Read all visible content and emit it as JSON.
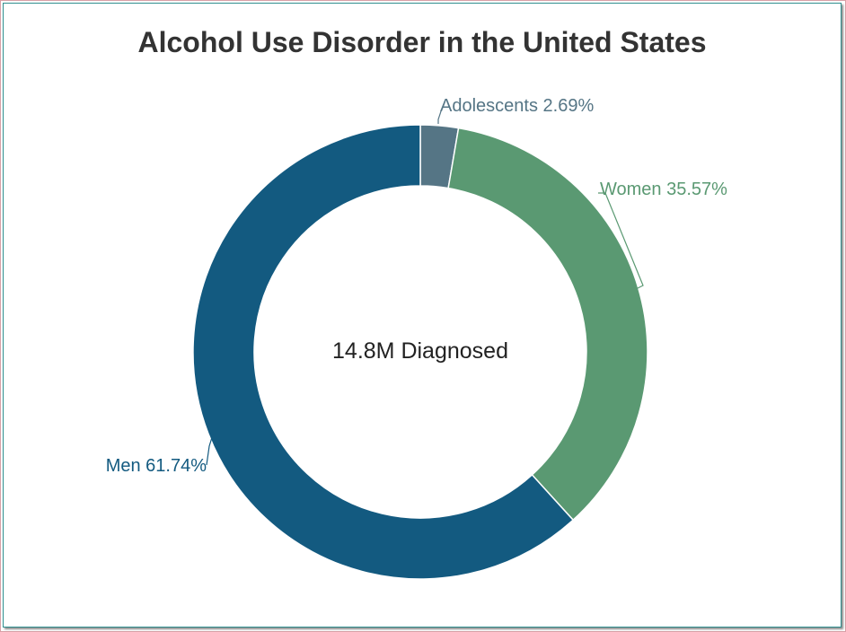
{
  "chart_data": {
    "type": "pie",
    "title": "Alcohol Use Disorder in the United States",
    "center_label": "14.8M Diagnosed",
    "slices": [
      {
        "name": "Adolescents",
        "value": 2.69,
        "label": "Adolescents 2.69%",
        "color": "#557585"
      },
      {
        "name": "Women",
        "value": 35.57,
        "label": "Women 35.57%",
        "color": "#5a9972"
      },
      {
        "name": "Men",
        "value": 61.74,
        "label": "Men 61.74%",
        "color": "#135a80"
      }
    ]
  }
}
